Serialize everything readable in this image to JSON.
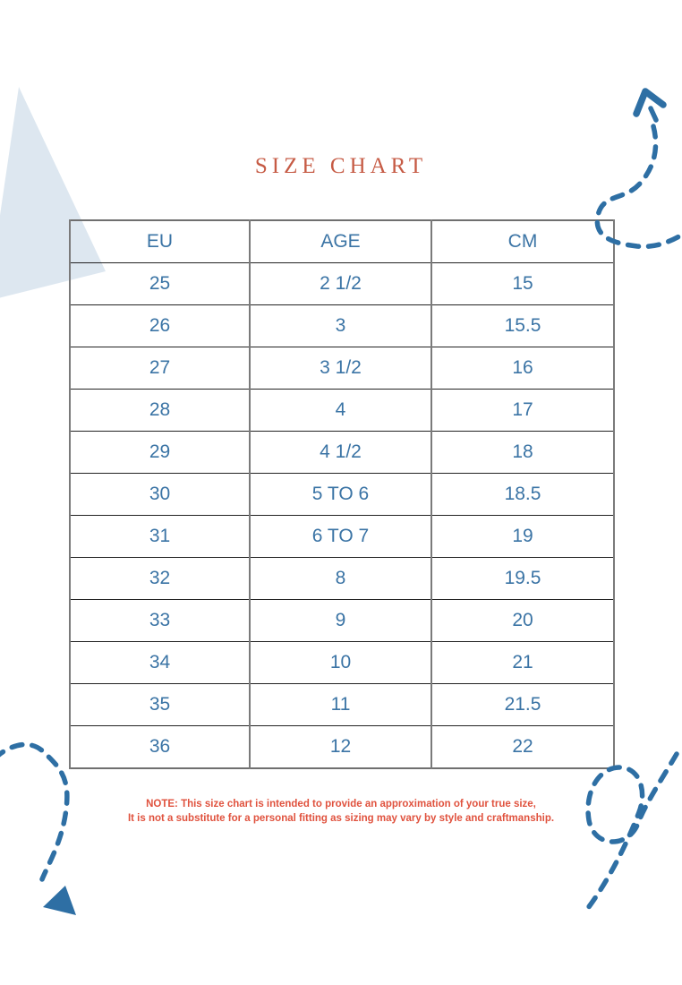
{
  "page": {
    "title": "SIZE CHART",
    "note_line1": "NOTE: This size chart is intended to provide an approximation of your true size,",
    "note_line2": "It is not a substitute for a personal fitting as sizing may vary by style and craftmanship."
  },
  "size_table": {
    "columns": [
      "EU",
      "AGE",
      "CM"
    ],
    "rows": [
      [
        "25",
        "2 1/2",
        "15"
      ],
      [
        "26",
        "3",
        "15.5"
      ],
      [
        "27",
        "3 1/2",
        "16"
      ],
      [
        "28",
        "4",
        "17"
      ],
      [
        "29",
        "4 1/2",
        "18"
      ],
      [
        "30",
        "5 TO 6",
        "18.5"
      ],
      [
        "31",
        "6 TO 7",
        "19"
      ],
      [
        "32",
        "8",
        "19.5"
      ],
      [
        "33",
        "9",
        "20"
      ],
      [
        "34",
        "10",
        "21"
      ],
      [
        "35",
        "11",
        "21.5"
      ],
      [
        "36",
        "12",
        "22"
      ]
    ]
  },
  "colors": {
    "title": "#c65b45",
    "note": "#e0523e",
    "table_text": "#3b74a5",
    "accent_blue": "#2e6fa4",
    "triangle": "#dde7f0"
  },
  "decor": {
    "shapes": [
      "pale-triangle",
      "dashed-arrow-up-right",
      "dashed-arrow-down-left",
      "dashed-loop"
    ]
  }
}
